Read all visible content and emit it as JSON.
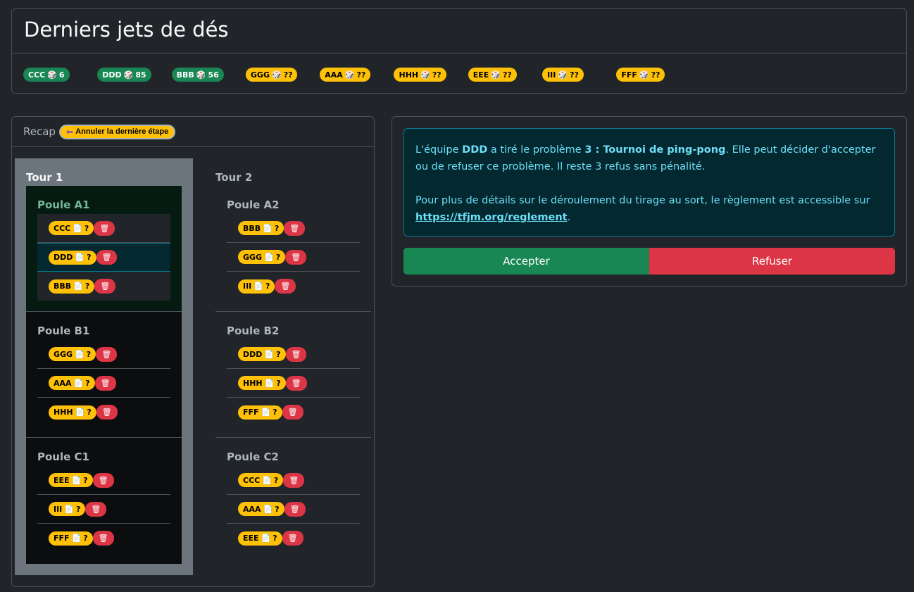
{
  "dice_card": {
    "title": "Derniers jets de dés",
    "rolls": [
      {
        "team": "CCC",
        "value": "6",
        "status": "rolled"
      },
      {
        "team": "DDD",
        "value": "85",
        "status": "rolled"
      },
      {
        "team": "BBB",
        "value": "56",
        "status": "rolled"
      },
      {
        "team": "GGG",
        "value": "??",
        "status": "pending"
      },
      {
        "team": "AAA",
        "value": "??",
        "status": "pending"
      },
      {
        "team": "HHH",
        "value": "??",
        "status": "pending"
      },
      {
        "team": "EEE",
        "value": "??",
        "status": "pending"
      },
      {
        "team": "III",
        "value": "??",
        "status": "pending"
      },
      {
        "team": "FFF",
        "value": "??",
        "status": "pending"
      }
    ]
  },
  "recap": {
    "label": "Recap",
    "undo_label": "Annuler la dernière étape",
    "tours": [
      {
        "title": "Tour 1",
        "pools": [
          {
            "title": "Poule A1",
            "active": true,
            "teams": [
              {
                "name": "CCC",
                "problem": "?"
              },
              {
                "name": "DDD",
                "problem": "?",
                "current": true
              },
              {
                "name": "BBB",
                "problem": "?"
              }
            ]
          },
          {
            "title": "Poule B1",
            "teams": [
              {
                "name": "GGG",
                "problem": "?"
              },
              {
                "name": "AAA",
                "problem": "?"
              },
              {
                "name": "HHH",
                "problem": "?"
              }
            ]
          },
          {
            "title": "Poule C1",
            "teams": [
              {
                "name": "EEE",
                "problem": "?"
              },
              {
                "name": "III",
                "problem": "?"
              },
              {
                "name": "FFF",
                "problem": "?"
              }
            ]
          }
        ]
      },
      {
        "title": "Tour 2",
        "pools": [
          {
            "title": "Poule A2",
            "teams": [
              {
                "name": "BBB",
                "problem": "?"
              },
              {
                "name": "GGG",
                "problem": "?"
              },
              {
                "name": "III",
                "problem": "?"
              }
            ]
          },
          {
            "title": "Poule B2",
            "teams": [
              {
                "name": "DDD",
                "problem": "?"
              },
              {
                "name": "HHH",
                "problem": "?"
              },
              {
                "name": "FFF",
                "problem": "?"
              }
            ]
          },
          {
            "title": "Poule C2",
            "teams": [
              {
                "name": "CCC",
                "problem": "?"
              },
              {
                "name": "AAA",
                "problem": "?"
              },
              {
                "name": "EEE",
                "problem": "?"
              }
            ]
          }
        ]
      }
    ]
  },
  "action": {
    "msg_p1": "L'équipe ",
    "team": "DDD",
    "msg_p2": " a tiré le problème ",
    "problem": "3 : Tournoi de ping-pong",
    "msg_p3": ". Elle peut décider d'accepter ou de refuser ce problème. Il reste 3 refus sans pénalité.",
    "msg_p4": "Pour plus de détails sur le déroulement du tirage au sort, le règlement est accessible sur ",
    "link": "https://tfjm.org/reglement",
    "msg_p5": ".",
    "accept_label": "Accepter",
    "refuse_label": "Refuser"
  },
  "colors": {
    "success": "#198754",
    "warning": "#ffc107",
    "danger": "#dc3545",
    "info": "#6edff6"
  },
  "icons": {
    "die": "game-die-icon",
    "problem": "page-icon",
    "trash": "wastebasket-icon",
    "undo": "back-arrow-icon"
  }
}
